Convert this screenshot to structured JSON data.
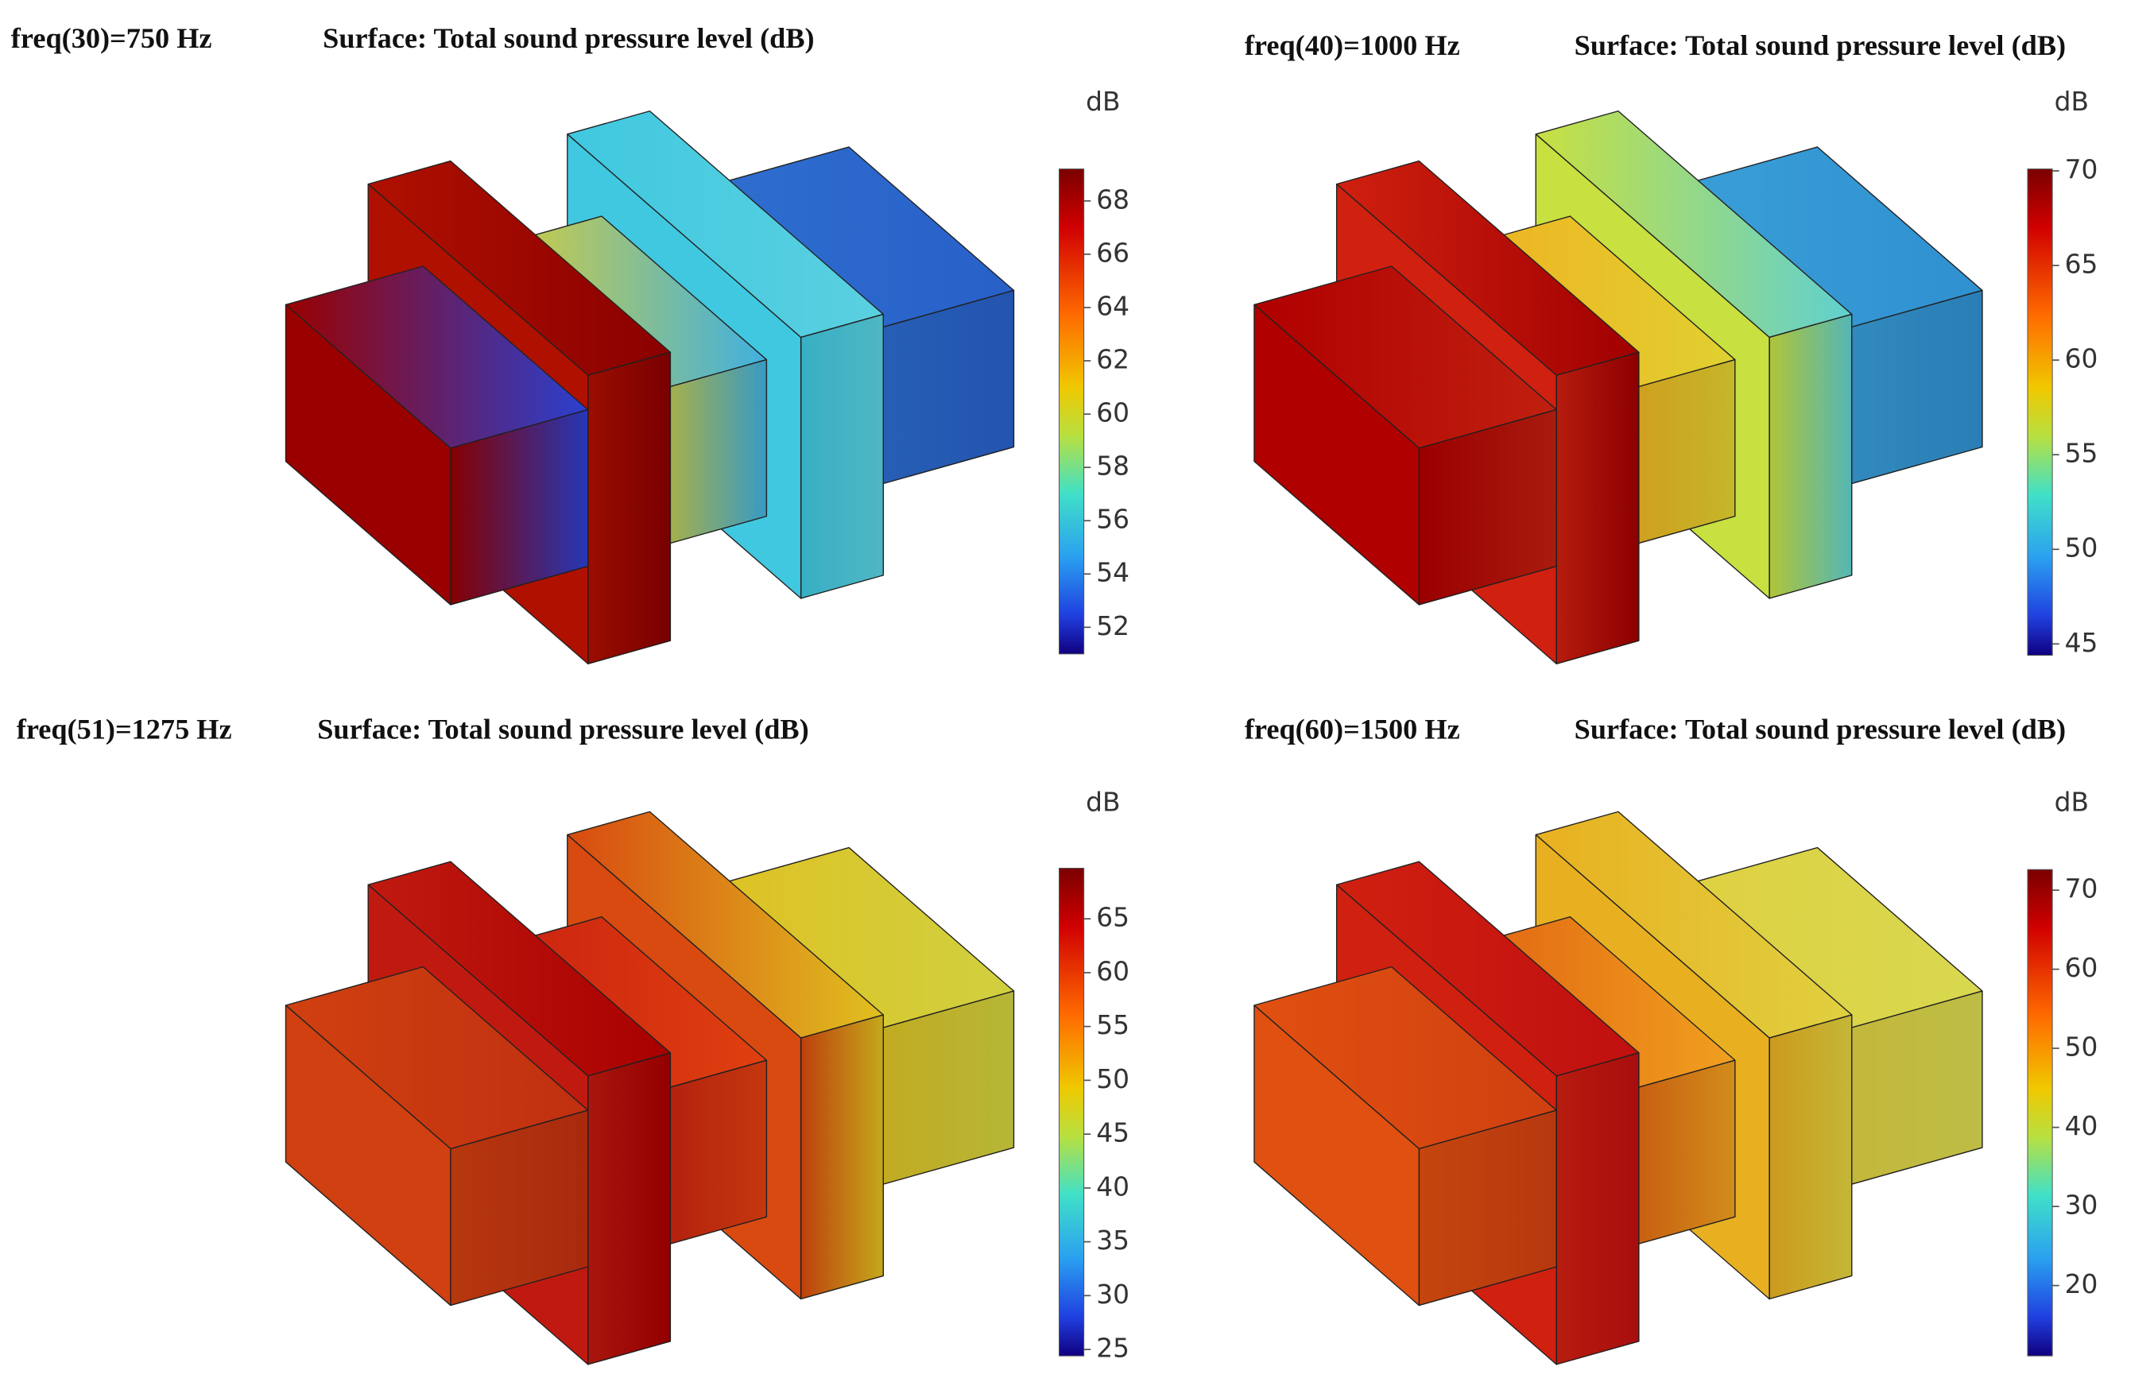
{
  "panels": [
    {
      "freq_label": "freq(30)=750 Hz",
      "title": "Surface: Total sound pressure level (dB)",
      "colorbar": {
        "unit": "dB",
        "lim": [
          51.0,
          69.2
        ],
        "ticks": [
          52,
          54,
          56,
          58,
          60,
          62,
          64,
          66,
          68
        ]
      }
    },
    {
      "freq_label": "freq(40)=1000 Hz",
      "title": "Surface: Total sound pressure level (dB)",
      "colorbar": {
        "unit": "dB",
        "lim": [
          44.4,
          70.1
        ],
        "ticks": [
          45,
          50,
          55,
          60,
          65,
          70
        ]
      }
    },
    {
      "freq_label": "freq(51)=1275 Hz",
      "title": "Surface: Total sound pressure level (dB)",
      "colorbar": {
        "unit": "dB",
        "lim": [
          24.4,
          69.7
        ],
        "ticks": [
          25,
          30,
          35,
          40,
          45,
          50,
          55,
          60,
          65
        ]
      }
    },
    {
      "freq_label": "freq(60)=1500 Hz",
      "title": "Surface: Total sound pressure level (dB)",
      "colorbar": {
        "unit": "dB",
        "lim": [
          11.1,
          72.6
        ],
        "ticks": [
          20,
          30,
          40,
          50,
          60,
          70
        ]
      }
    }
  ]
}
